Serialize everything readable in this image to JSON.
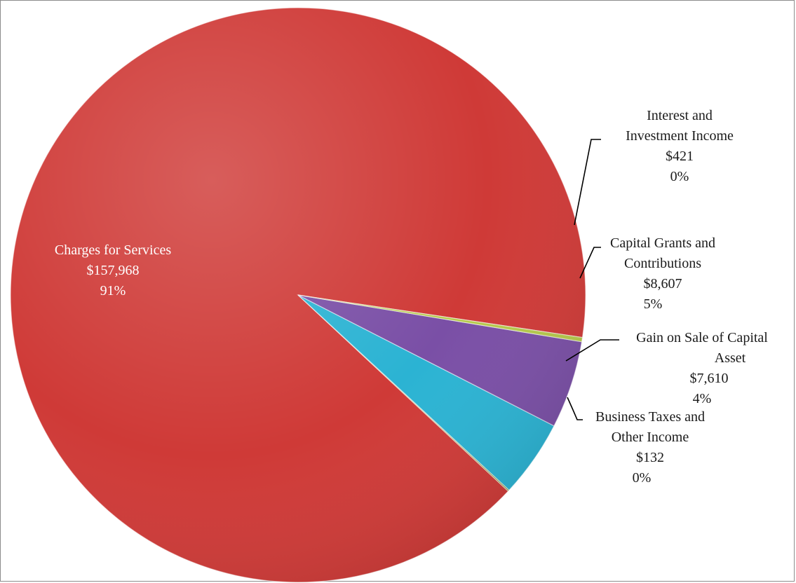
{
  "chart_data": {
    "type": "pie",
    "title": "",
    "start_angle_deg": -8.5,
    "direction": "counterclockwise",
    "slices": [
      {
        "name": "Charges for Services",
        "value": 157968,
        "value_label": "$157,968",
        "percent_label": "91%",
        "color": "#cf3a37",
        "label_lines": [
          "Charges for Services",
          "$157,968",
          "91%"
        ]
      },
      {
        "name": "Business Taxes and Other Income",
        "value": 132,
        "value_label": "$132",
        "percent_label": "0%",
        "color": "#8a9a3a",
        "label_lines": [
          "Business Taxes and",
          "Other Income",
          "$132",
          "0%"
        ]
      },
      {
        "name": "Gain on Sale of Capital Asset",
        "value": 7610,
        "value_label": "$7,610",
        "percent_label": "4%",
        "color": "#2bb3d3",
        "label_lines": [
          "Gain on Sale of Capital",
          "Asset",
          "$7,610",
          "4%"
        ]
      },
      {
        "name": "Capital Grants and Contributions",
        "value": 8607,
        "value_label": "$8,607",
        "percent_label": "5%",
        "color": "#7a4fa6",
        "label_lines": [
          "Capital Grants and",
          "Contributions",
          "$8,607",
          "5%"
        ]
      },
      {
        "name": "Interest and Investment Income",
        "value": 421,
        "value_label": "$421",
        "percent_label": "0%",
        "color": "#b5c94a",
        "label_lines": [
          "Interest and",
          "Investment Income",
          "$421",
          "0%"
        ]
      }
    ],
    "legend": "none",
    "labels": "callouts with leader lines"
  }
}
